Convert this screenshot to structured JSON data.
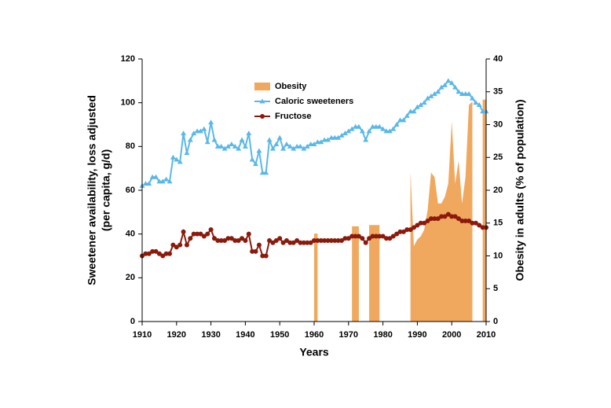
{
  "chart_data": {
    "type": "combo",
    "xlabel": "Years",
    "ylabel": [
      "Sweetener availability, loss adjusted",
      "(per capita, g/d)"
    ],
    "y2label": "Obesity in adults (% of population)",
    "xlim": [
      1910,
      2010
    ],
    "xticks": [
      1910,
      1920,
      1930,
      1940,
      1950,
      1960,
      1970,
      1980,
      1990,
      2000,
      2010
    ],
    "ylim": [
      0,
      120
    ],
    "yticks": [
      0,
      20,
      40,
      60,
      80,
      100,
      120
    ],
    "y2lim": [
      0,
      40
    ],
    "y2ticks": [
      0,
      5,
      10,
      15,
      20,
      25,
      30,
      35,
      40
    ],
    "legend": "top-center",
    "x": [
      1910,
      1911,
      1912,
      1913,
      1914,
      1915,
      1916,
      1917,
      1918,
      1919,
      1920,
      1921,
      1922,
      1923,
      1924,
      1925,
      1926,
      1927,
      1928,
      1929,
      1930,
      1931,
      1932,
      1933,
      1934,
      1935,
      1936,
      1937,
      1938,
      1939,
      1940,
      1941,
      1942,
      1943,
      1944,
      1945,
      1946,
      1947,
      1948,
      1949,
      1950,
      1951,
      1952,
      1953,
      1954,
      1955,
      1956,
      1957,
      1958,
      1959,
      1960,
      1961,
      1962,
      1963,
      1964,
      1965,
      1966,
      1967,
      1968,
      1969,
      1970,
      1971,
      1972,
      1973,
      1974,
      1975,
      1976,
      1977,
      1978,
      1979,
      1980,
      1981,
      1982,
      1983,
      1984,
      1985,
      1986,
      1987,
      1988,
      1989,
      1990,
      1991,
      1992,
      1993,
      1994,
      1995,
      1996,
      1997,
      1998,
      1999,
      2000,
      2001,
      2002,
      2003,
      2004,
      2005,
      2006,
      2007,
      2008,
      2009,
      2010
    ],
    "series": [
      {
        "name": "Obesity",
        "kind": "area",
        "axis": "y2",
        "color": "#f0a85e",
        "values": [
          null,
          null,
          null,
          null,
          null,
          null,
          null,
          null,
          null,
          null,
          null,
          null,
          null,
          null,
          null,
          null,
          null,
          null,
          null,
          null,
          null,
          null,
          null,
          null,
          null,
          null,
          null,
          null,
          null,
          null,
          null,
          null,
          null,
          null,
          null,
          null,
          null,
          null,
          null,
          null,
          null,
          null,
          null,
          null,
          null,
          null,
          null,
          null,
          null,
          null,
          13.4,
          13.4,
          null,
          null,
          null,
          null,
          null,
          null,
          null,
          null,
          null,
          14.5,
          14.5,
          14.5,
          null,
          null,
          14.7,
          14.7,
          14.7,
          14.7,
          null,
          null,
          null,
          null,
          null,
          null,
          null,
          null,
          22.8,
          11.5,
          12.5,
          13,
          14,
          17,
          22.7,
          22,
          18,
          18,
          19,
          21,
          30.5,
          21,
          24.5,
          18,
          22,
          33,
          33.5,
          null,
          null,
          33.8,
          33.8
        ]
      },
      {
        "name": "Caloric sweeteners",
        "kind": "line",
        "marker": "triangle",
        "color": "#5ab8e8",
        "values": [
          62,
          63,
          63,
          66,
          66,
          64,
          64,
          65,
          64,
          75,
          74,
          73,
          86,
          77,
          83,
          86,
          87,
          87,
          88,
          82,
          91,
          83,
          80,
          80,
          79,
          80,
          81,
          80,
          79,
          83,
          80,
          86,
          74,
          72,
          78,
          68,
          68,
          83,
          79,
          81,
          84,
          79,
          81,
          80,
          79,
          80,
          80,
          79,
          80,
          81,
          81,
          82,
          82,
          83,
          83,
          84,
          84,
          84,
          85,
          86,
          87,
          88,
          89,
          89,
          87,
          83,
          87,
          89,
          89,
          89,
          88,
          87,
          87,
          88,
          90,
          92,
          92,
          94,
          96,
          96,
          98,
          99,
          100,
          102,
          103,
          104,
          105,
          107,
          108,
          110,
          109,
          107,
          105,
          104,
          104,
          104,
          102,
          100,
          99,
          96,
          96
        ]
      },
      {
        "name": "Fructose",
        "kind": "line",
        "marker": "circle",
        "color": "#8b1a0c",
        "values": [
          30,
          31,
          31,
          32,
          32,
          31,
          30,
          31,
          31,
          35,
          34,
          35,
          41,
          35,
          38,
          40,
          40,
          40,
          39,
          40,
          42,
          38,
          37,
          37,
          37,
          38,
          38,
          37,
          37,
          38,
          37,
          40,
          32,
          32,
          35,
          30,
          30,
          37,
          36,
          37,
          38,
          36,
          37,
          36,
          36,
          37,
          36,
          36,
          36,
          36,
          37,
          37,
          37,
          37,
          37,
          37,
          37,
          37,
          37,
          38,
          38,
          39,
          39,
          39,
          38,
          36,
          38,
          39,
          39,
          39,
          39,
          38,
          38,
          39,
          40,
          41,
          41,
          42,
          42,
          43,
          44,
          45,
          45,
          46,
          47,
          47,
          47,
          48,
          48,
          49,
          48,
          48,
          47,
          46,
          46,
          46,
          45,
          45,
          44,
          43,
          43
        ]
      }
    ]
  }
}
